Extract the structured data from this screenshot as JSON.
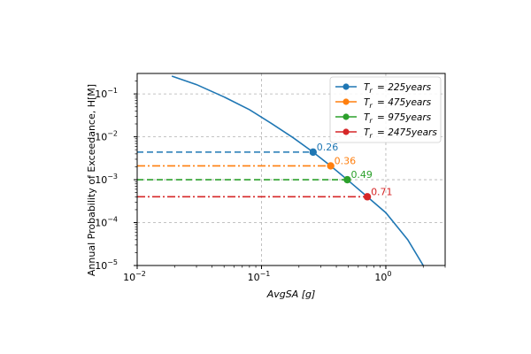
{
  "chart_data": {
    "type": "line",
    "title": "",
    "xlabel": "AvgSA [g]",
    "ylabel": "Annual Probability of Exceedance, H[M]",
    "x_scale": "log",
    "y_scale": "log",
    "xlim": [
      0.01,
      3.0
    ],
    "ylim": [
      1e-05,
      0.3
    ],
    "x_ticks": [
      {
        "value": 0.01,
        "base": "10",
        "exp": "−2"
      },
      {
        "value": 0.1,
        "base": "10",
        "exp": "−1"
      },
      {
        "value": 1,
        "base": "10",
        "exp": "0"
      }
    ],
    "y_ticks": [
      {
        "value": 1e-05,
        "base": "10",
        "exp": "−5"
      },
      {
        "value": 0.0001,
        "base": "10",
        "exp": "−4"
      },
      {
        "value": 0.001,
        "base": "10",
        "exp": "−3"
      },
      {
        "value": 0.01,
        "base": "10",
        "exp": "−2"
      },
      {
        "value": 0.1,
        "base": "10",
        "exp": "−1"
      }
    ],
    "grid": true,
    "legend_position": "top-right",
    "hazard_curve": {
      "color": "#1f77b4",
      "x": [
        0.019,
        0.03,
        0.05,
        0.08,
        0.12,
        0.18,
        0.26,
        0.36,
        0.49,
        0.71,
        1.0,
        1.5,
        2.0
      ],
      "y": [
        0.26,
        0.165,
        0.085,
        0.043,
        0.0205,
        0.0095,
        0.0044,
        0.0021,
        0.001,
        0.0004,
        0.00017,
        4e-05,
        1e-05
      ]
    },
    "series": [
      {
        "name": "T_r = 225years",
        "sub_label": "T",
        "sub_index": "r",
        "label_rest": "= 225years",
        "x": 0.26,
        "y": 0.0044,
        "label": "0.26",
        "color": "#1f77b4",
        "dash": "dashed"
      },
      {
        "name": "T_r = 475years",
        "sub_label": "T",
        "sub_index": "r",
        "label_rest": "= 475years",
        "x": 0.36,
        "y": 0.0021,
        "label": "0.36",
        "color": "#ff7f0e",
        "dash": "dashdot"
      },
      {
        "name": "T_r = 975years",
        "sub_label": "T",
        "sub_index": "r",
        "label_rest": "= 975years",
        "x": 0.49,
        "y": 0.001,
        "label": "0.49",
        "color": "#2ca02c",
        "dash": "dashed"
      },
      {
        "name": "T_r = 2475years",
        "sub_label": "T",
        "sub_index": "r",
        "label_rest": "= 2475years",
        "x": 0.71,
        "y": 0.0004,
        "label": "0.71",
        "color": "#d62728",
        "dash": "dashdot"
      }
    ]
  }
}
